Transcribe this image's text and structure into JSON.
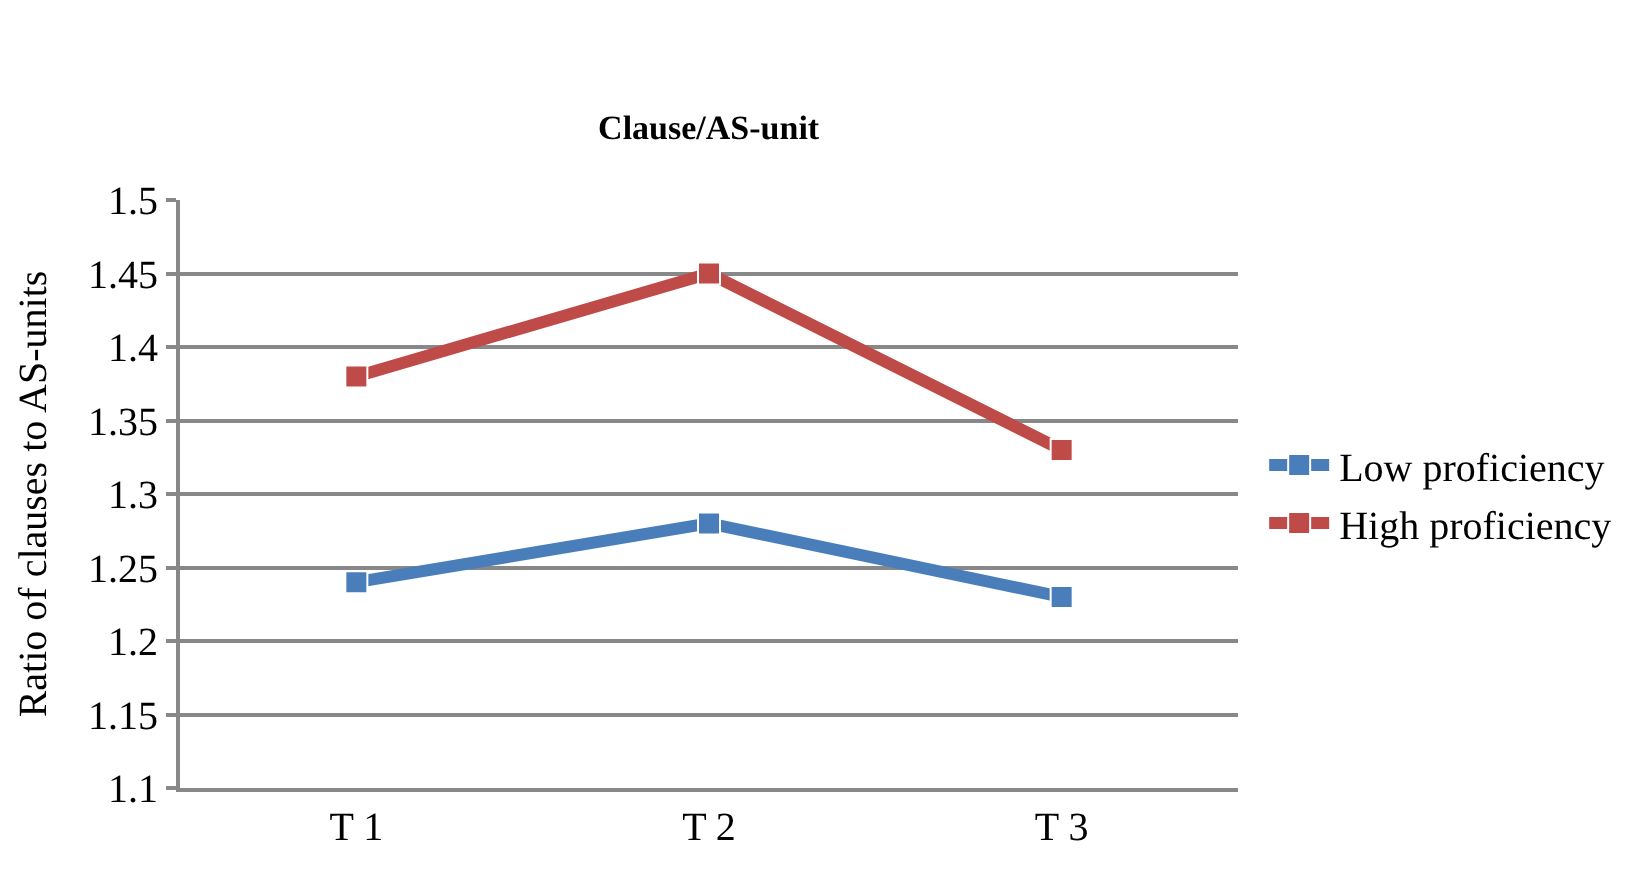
{
  "chart_data": {
    "type": "line",
    "title": "Clause/AS-unit",
    "ylabel": "Ratio of clauses to AS-units",
    "categories": [
      "T 1",
      "T 2",
      "T 3"
    ],
    "series": [
      {
        "name": "Low proficiency",
        "color": "#4a7ebb",
        "values": [
          1.24,
          1.28,
          1.23
        ]
      },
      {
        "name": "High proficiency",
        "color": "#be4b48",
        "values": [
          1.38,
          1.45,
          1.33
        ]
      }
    ],
    "ylim": [
      1.1,
      1.5
    ],
    "yticks": [
      1.1,
      1.15,
      1.2,
      1.25,
      1.3,
      1.35,
      1.4,
      1.45,
      1.5
    ],
    "grid": "y",
    "legend": "right",
    "marker": "square",
    "line_style": "solid"
  }
}
